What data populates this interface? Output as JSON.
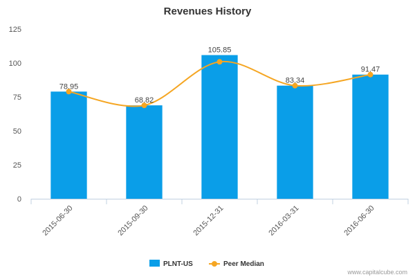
{
  "chart_data": {
    "type": "bar",
    "title": "Revenues History",
    "categories": [
      "2015-06-30",
      "2015-09-30",
      "2015-12-31",
      "2016-03-31",
      "2016-06-30"
    ],
    "series": [
      {
        "name": "PLNT-US",
        "type": "bar",
        "color": "#0a9ee8",
        "values": [
          78.95,
          68.82,
          105.85,
          83.34,
          91.47
        ]
      },
      {
        "name": "Peer Median",
        "type": "line",
        "color": "#f5a623",
        "values": [
          78.95,
          68.82,
          100.9,
          83.34,
          91.47
        ]
      }
    ],
    "data_labels": [
      "78.95",
      "68.82",
      "105.85",
      "83.34",
      "91.47"
    ],
    "yticks": [
      0,
      25,
      50,
      75,
      100,
      125
    ],
    "ylim": [
      0,
      125
    ],
    "grid": false,
    "legend_position": "bottom-center"
  },
  "credit": "www.capitalcube.com"
}
